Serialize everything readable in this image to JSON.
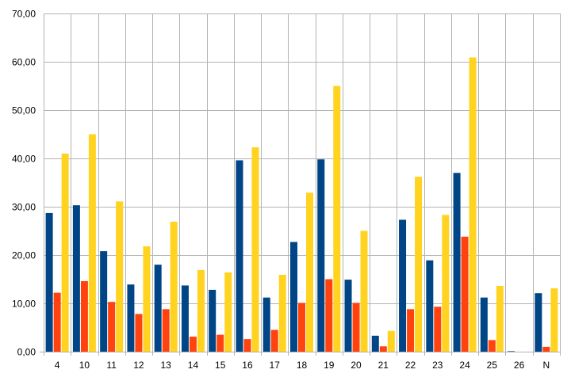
{
  "chart_data": {
    "type": "bar",
    "title": "",
    "xlabel": "",
    "ylabel": "",
    "ylim": [
      0,
      70
    ],
    "yticks": [
      "0,00",
      "10,00",
      "20,00",
      "30,00",
      "40,00",
      "50,00",
      "60,00",
      "70,00"
    ],
    "grid": true,
    "legend": "none",
    "categories": [
      "4",
      "10",
      "11",
      "12",
      "13",
      "14",
      "15",
      "16",
      "17",
      "18",
      "19",
      "20",
      "21",
      "22",
      "23",
      "24",
      "25",
      "26",
      "N"
    ],
    "series": [
      {
        "color": "#004586",
        "values": [
          28.7,
          30.3,
          20.8,
          13.9,
          18.0,
          13.7,
          12.8,
          39.6,
          11.2,
          22.7,
          39.8,
          14.9,
          3.3,
          27.3,
          18.9,
          37.0,
          11.2,
          0.1,
          12.1
        ]
      },
      {
        "color": "#ff420e",
        "values": [
          12.2,
          14.6,
          10.3,
          7.8,
          8.8,
          3.1,
          3.5,
          2.6,
          4.5,
          10.1,
          15.0,
          10.1,
          1.1,
          8.8,
          9.3,
          23.8,
          2.4,
          0.0,
          1.0
        ]
      },
      {
        "color": "#ffd320",
        "values": [
          41.0,
          45.0,
          31.1,
          21.8,
          26.9,
          16.9,
          16.4,
          42.3,
          15.9,
          32.9,
          55.0,
          25.0,
          4.3,
          36.2,
          28.3,
          60.9,
          13.6,
          0.0,
          13.1
        ]
      }
    ]
  }
}
